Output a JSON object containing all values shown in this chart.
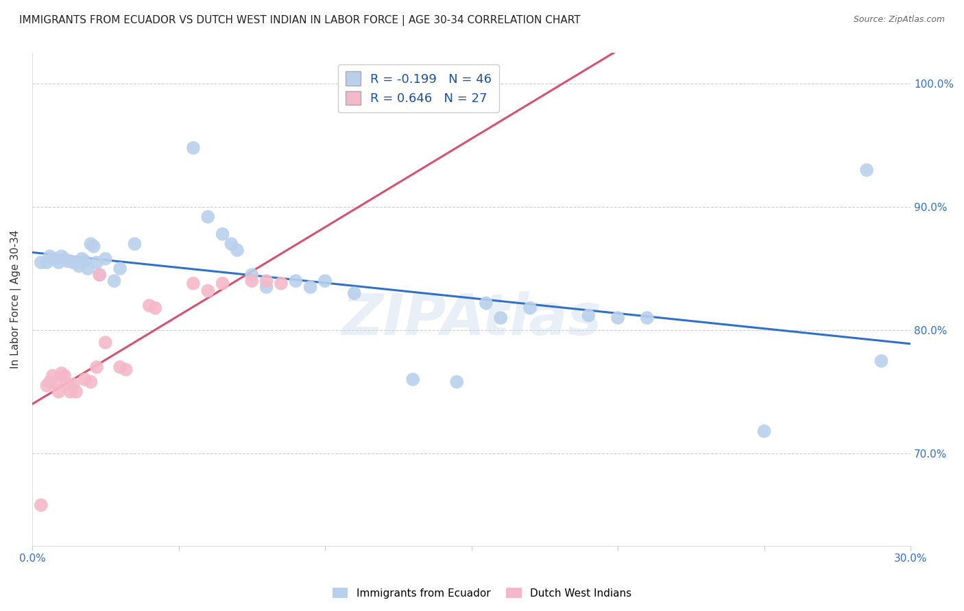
{
  "title": "IMMIGRANTS FROM ECUADOR VS DUTCH WEST INDIAN IN LABOR FORCE | AGE 30-34 CORRELATION CHART",
  "source": "Source: ZipAtlas.com",
  "ylabel": "In Labor Force | Age 30-34",
  "xlim": [
    0.0,
    0.3
  ],
  "ylim": [
    0.625,
    1.025
  ],
  "xticks": [
    0.0,
    0.05,
    0.1,
    0.15,
    0.2,
    0.25,
    0.3
  ],
  "xticklabels": [
    "0.0%",
    "",
    "",
    "",
    "",
    "",
    "30.0%"
  ],
  "yticks": [
    0.7,
    0.8,
    0.9,
    1.0
  ],
  "yticklabels": [
    "70.0%",
    "80.0%",
    "90.0%",
    "100.0%"
  ],
  "blue_R": "-0.199",
  "blue_N": "46",
  "pink_R": "0.646",
  "pink_N": "27",
  "blue_color": "#b8d0eb",
  "pink_color": "#f5b8c8",
  "blue_line_color": "#3070c8",
  "pink_line_color": "#d85070",
  "legend_label_blue": "Immigrants from Ecuador",
  "legend_label_pink": "Dutch West Indians",
  "blue_x": [
    0.003,
    0.005,
    0.006,
    0.007,
    0.008,
    0.009,
    0.01,
    0.011,
    0.012,
    0.013,
    0.014,
    0.015,
    0.016,
    0.017,
    0.018,
    0.019,
    0.02,
    0.021,
    0.022,
    0.023,
    0.025,
    0.028,
    0.03,
    0.035,
    0.055,
    0.06,
    0.065,
    0.068,
    0.07,
    0.075,
    0.08,
    0.09,
    0.095,
    0.1,
    0.11,
    0.13,
    0.145,
    0.155,
    0.16,
    0.17,
    0.19,
    0.2,
    0.21,
    0.25,
    0.285,
    0.29
  ],
  "blue_y": [
    0.855,
    0.855,
    0.86,
    0.858,
    0.858,
    0.855,
    0.86,
    0.858,
    0.856,
    0.856,
    0.855,
    0.855,
    0.852,
    0.858,
    0.856,
    0.85,
    0.87,
    0.868,
    0.855,
    0.845,
    0.858,
    0.84,
    0.85,
    0.87,
    0.948,
    0.892,
    0.878,
    0.87,
    0.865,
    0.845,
    0.835,
    0.84,
    0.835,
    0.84,
    0.83,
    0.76,
    0.758,
    0.822,
    0.81,
    0.818,
    0.812,
    0.81,
    0.81,
    0.718,
    0.93,
    0.775
  ],
  "pink_x": [
    0.003,
    0.005,
    0.006,
    0.007,
    0.008,
    0.009,
    0.01,
    0.011,
    0.012,
    0.013,
    0.014,
    0.015,
    0.018,
    0.02,
    0.022,
    0.023,
    0.025,
    0.03,
    0.032,
    0.04,
    0.042,
    0.055,
    0.06,
    0.065,
    0.075,
    0.08,
    0.085
  ],
  "pink_y": [
    0.658,
    0.755,
    0.758,
    0.763,
    0.758,
    0.75,
    0.765,
    0.763,
    0.756,
    0.75,
    0.756,
    0.75,
    0.76,
    0.758,
    0.77,
    0.845,
    0.79,
    0.77,
    0.768,
    0.82,
    0.818,
    0.838,
    0.832,
    0.838,
    0.84,
    0.84,
    0.838
  ],
  "watermark": "ZIPAtlas",
  "title_fontsize": 11,
  "axis_label_fontsize": 11,
  "tick_fontsize": 11
}
